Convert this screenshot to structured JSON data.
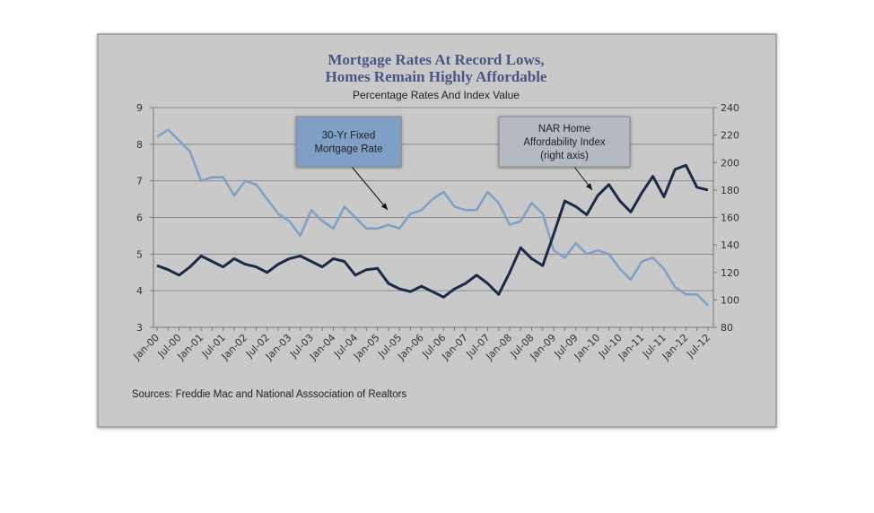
{
  "chart_data": {
    "type": "line",
    "title": [
      "Mortgage Rates At Record Lows,",
      "Homes Remain Highly Affordable"
    ],
    "subtitle": "Percentage Rates And Index Value",
    "annotations": [
      {
        "lines": [
          "30-Yr Fixed",
          "Mortgage Rate"
        ]
      },
      {
        "lines": [
          "NAR Home",
          "Affordability Index",
          "(right axis)"
        ]
      }
    ],
    "source": "Sources:  Freddie Mac and National Asssociation of Realtors",
    "categories": [
      "Jan-00",
      null,
      "Jul-00",
      null,
      "Jan-01",
      null,
      "Jul-01",
      null,
      "Jan-02",
      null,
      "Jul-02",
      null,
      "Jan-03",
      null,
      "Jul-03",
      null,
      "Jan-04",
      null,
      "Jul-04",
      null,
      "Jan-05",
      null,
      "Jul-05",
      null,
      "Jan-06",
      null,
      "Jul-06",
      null,
      "Jan-07",
      null,
      "Jul-07",
      null,
      "Jan-08",
      null,
      "Jul-08",
      null,
      "Jan-09",
      null,
      "Jul-09",
      null,
      "Jan-10",
      null,
      "Jul-10",
      null,
      "Jan-11",
      null,
      "Jul-11",
      null,
      "Jan-12",
      null,
      "Jul-12"
    ],
    "series": [
      {
        "color": "#7f9fc6",
        "values": [
          8.2,
          8.4,
          8.1,
          7.8,
          7.0,
          7.1,
          7.1,
          6.6,
          7.0,
          6.9,
          6.5,
          6.1,
          5.9,
          5.5,
          6.2,
          5.9,
          5.7,
          6.3,
          6.0,
          5.7,
          5.7,
          5.8,
          5.7,
          6.1,
          6.2,
          6.5,
          6.7,
          6.3,
          6.2,
          6.2,
          6.7,
          6.4,
          5.8,
          5.9,
          6.4,
          6.1,
          5.1,
          4.9,
          5.3,
          5.0,
          5.1,
          5.0,
          4.6,
          4.3,
          4.8,
          4.9,
          4.6,
          4.1,
          3.9,
          3.9,
          3.6
        ]
      },
      {
        "color": "#1c2a48",
        "axis": "y2",
        "values": [
          125,
          122,
          118,
          124,
          132,
          128,
          124,
          130,
          126,
          124,
          120,
          126,
          130,
          132,
          128,
          124,
          130,
          128,
          118,
          122,
          123,
          112,
          108,
          106,
          110,
          106,
          102,
          108,
          112,
          118,
          112,
          104,
          120,
          138,
          130,
          125,
          148,
          172,
          168,
          162,
          176,
          184,
          172,
          164,
          178,
          190,
          175,
          195,
          198,
          182,
          180
        ]
      }
    ],
    "ylim": [
      3,
      9
    ],
    "yticks": [
      3,
      4,
      5,
      6,
      7,
      8,
      9
    ],
    "y2lim": [
      80,
      240
    ],
    "y2ticks": [
      80,
      100,
      120,
      140,
      160,
      180,
      200,
      220,
      240
    ],
    "grid": true
  }
}
